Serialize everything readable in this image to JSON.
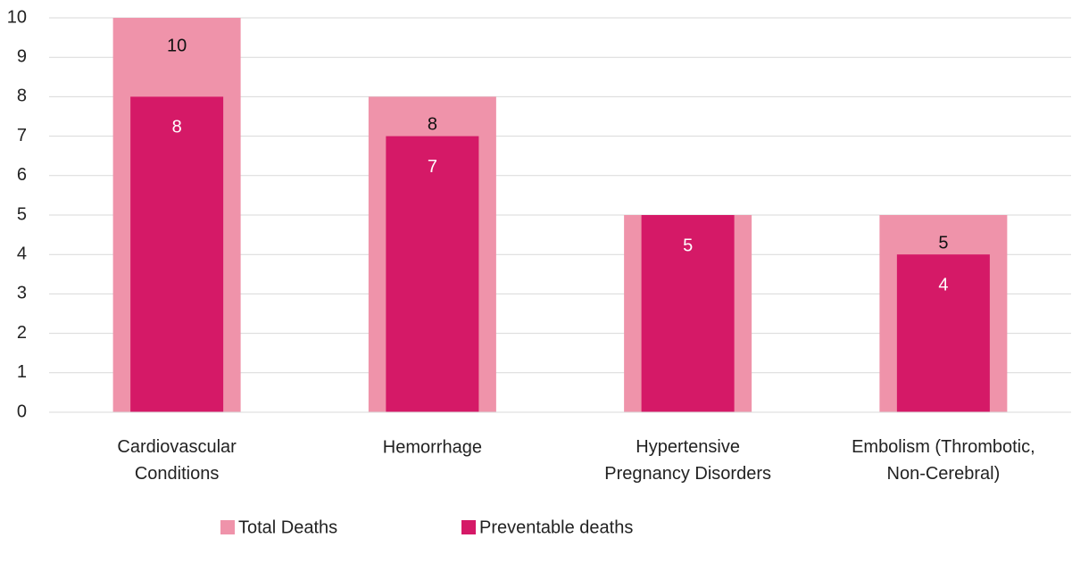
{
  "chart_data": {
    "type": "overlapped_bar",
    "categories": [
      "Cardiovascular Conditions",
      "Hemorrhage",
      "Hypertensive Pregnancy Disorders",
      "Embolism (Thrombotic, Non-Cerebral)"
    ],
    "series": [
      {
        "name": "Total Deaths",
        "color": "#ef93aa",
        "values": [
          10,
          8,
          5,
          5
        ]
      },
      {
        "name": "Preventable deaths",
        "color": "#d51967",
        "values": [
          8,
          7,
          5,
          4
        ]
      }
    ],
    "ylim": [
      0,
      10
    ],
    "yticks": [
      0,
      1,
      2,
      3,
      4,
      5,
      6,
      7,
      8,
      9,
      10
    ],
    "grid": true,
    "legend": "bottom"
  }
}
